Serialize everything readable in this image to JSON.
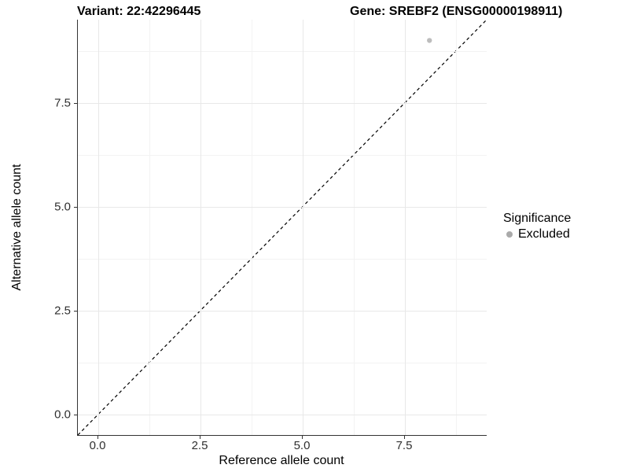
{
  "titles": {
    "variant": "Variant: 22:42296445",
    "gene": "Gene: SREBF2 (ENSG00000198911)"
  },
  "chart_data": {
    "type": "scatter",
    "title_left": "Variant: 22:42296445",
    "title_right": "Gene: SREBF2 (ENSG00000198911)",
    "xlabel": "Reference allele count",
    "ylabel": "Alternative allele count",
    "xlim": [
      -0.5,
      9.5
    ],
    "ylim": [
      -0.5,
      9.5
    ],
    "x_major_ticks": [
      0,
      2.5,
      5,
      7.5
    ],
    "x_tick_labels": [
      "0.0",
      "2.5",
      "5.0",
      "7.5"
    ],
    "y_major_ticks": [
      0,
      2.5,
      5,
      7.5
    ],
    "y_tick_labels": [
      "0.0",
      "2.5",
      "5.0",
      "7.5"
    ],
    "x_minor_ticks": [
      1.25,
      3.75,
      6.25,
      8.75
    ],
    "y_minor_ticks": [
      1.25,
      3.75,
      6.25,
      8.75
    ],
    "grid": "major+minor",
    "series": [
      {
        "name": "Excluded",
        "marker_color": "#bdbdbd",
        "points": [
          {
            "x": 8.1,
            "y": 9.0
          }
        ]
      }
    ],
    "reference_line": {
      "kind": "identity y=x",
      "style": "dashed",
      "color": "#000000",
      "from": [
        -0.5,
        -0.5
      ],
      "to": [
        9.5,
        9.5
      ]
    },
    "legend": {
      "title": "Significance",
      "position": "right",
      "entries": [
        {
          "label": "Excluded",
          "marker_color": "#aaaaaa"
        }
      ]
    }
  },
  "colors": {
    "background": "#ffffff",
    "grid_major": "#e8e8e8",
    "grid_minor": "#f3f3f3",
    "axis_line": "#333333",
    "tick_label": "#303030"
  }
}
